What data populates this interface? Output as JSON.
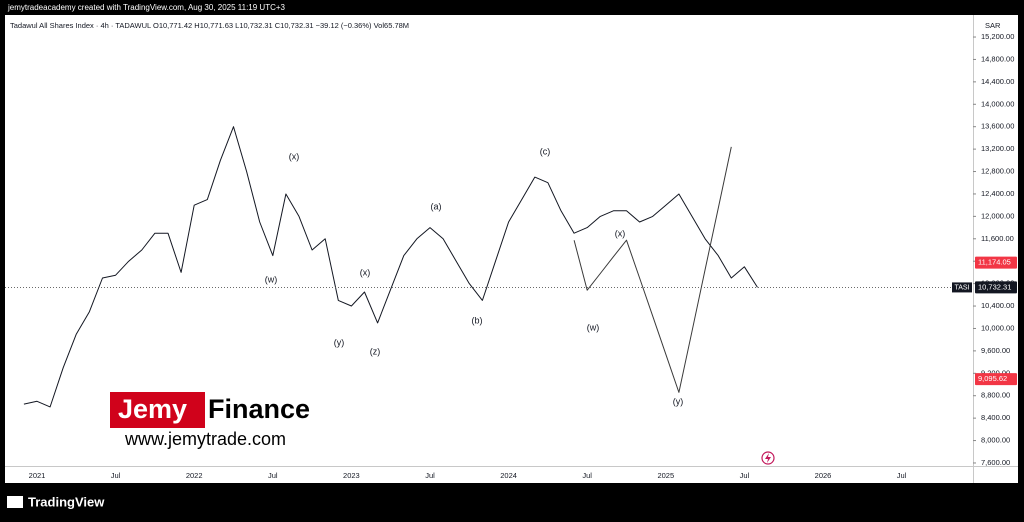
{
  "header": "jemytradeacademy created with TradingView.com, Aug 30, 2025 11:19 UTC+3",
  "footer": "TradingView",
  "brand": {
    "first": "Jemy",
    "second": "Finance",
    "url": "www.jemytrade.com"
  },
  "chart_data": {
    "type": "line",
    "title": "Tadawul All Shares Index · 4h · TADAWUL",
    "subtitle": "O10,771.42  H10,771.63  L10,732.31  C10,732.31  −39.12 (−0.36%)  Vol65.78M",
    "y_axis_label": "SAR",
    "categories": [
      null,
      "2021",
      null,
      null,
      null,
      null,
      null,
      "Jul",
      null,
      null,
      null,
      null,
      null,
      "2022",
      null,
      null,
      null,
      null,
      null,
      "Jul",
      null,
      null,
      null,
      null,
      null,
      "2023",
      null,
      null,
      null,
      null,
      null,
      "Jul",
      null,
      null,
      null,
      null,
      null,
      "2024",
      null,
      null,
      null,
      null,
      null,
      "Jul",
      null,
      null,
      null,
      null,
      null,
      "2025",
      null,
      null,
      null,
      null,
      null,
      "Jul",
      null,
      null,
      null,
      null,
      null,
      "2026",
      null,
      null,
      null,
      null,
      null,
      "Jul",
      null,
      null,
      null
    ],
    "values": [
      8650,
      8700,
      8600,
      9300,
      9900,
      10300,
      10900,
      10950,
      11200,
      11400,
      11700,
      11700,
      11000,
      12200,
      12300,
      13000,
      13600,
      12800,
      11900,
      11300,
      12400,
      12000,
      11400,
      11600,
      10500,
      10400,
      10650,
      10100,
      10700,
      11300,
      11600,
      11800,
      11600,
      11200,
      10800,
      10500,
      11200,
      11900,
      12300,
      12700,
      12600,
      12100,
      11700,
      11800,
      12000,
      12100,
      12100,
      11900,
      12000,
      12200,
      12400,
      12000,
      11600,
      11300,
      10900,
      11100,
      10732.31,
      null,
      null,
      null,
      null,
      null,
      null,
      null,
      null,
      null,
      null,
      null,
      null,
      null,
      null
    ],
    "color": "#131722",
    "projection": {
      "color": "#3a3a3a",
      "values": [
        null,
        null,
        null,
        null,
        null,
        null,
        null,
        null,
        null,
        null,
        null,
        null,
        null,
        null,
        null,
        null,
        null,
        null,
        null,
        null,
        null,
        null,
        null,
        null,
        null,
        null,
        null,
        null,
        null,
        null,
        null,
        null,
        null,
        null,
        null,
        null,
        null,
        null,
        null,
        null,
        null,
        null,
        11575,
        10682,
        10980,
        11280,
        11575,
        10900,
        10220,
        9540,
        8860,
        9950,
        11050,
        12140,
        13240,
        null,
        null,
        null,
        null,
        null,
        null,
        null,
        null,
        null,
        null,
        null,
        null,
        null,
        null,
        null,
        null,
        null
      ]
    },
    "annotations": [
      "(x)",
      "(w)",
      "(y)",
      "(x)",
      "(z)",
      "(a)",
      "(b)",
      "(c)",
      "(w)",
      "(x)",
      "(y)"
    ],
    "ylim": [
      7546,
      15593
    ],
    "yticks": [
      {
        "value": 7600,
        "label": "7,600.00"
      },
      {
        "value": 8000,
        "label": "8,000.00"
      },
      {
        "value": 8400,
        "label": "8,400.00"
      },
      {
        "value": 8800,
        "label": "8,800.00"
      },
      {
        "value": 9200,
        "label": "9,200.00"
      },
      {
        "value": 9600,
        "label": "9,600.00"
      },
      {
        "value": 10000,
        "label": "10,000.00"
      },
      {
        "value": 10400,
        "label": "10,400.00"
      },
      {
        "value": 10800,
        "label": "10,800.00"
      },
      {
        "value": 11200,
        "label": "11,200.00"
      },
      {
        "value": 11600,
        "label": "11,600.00"
      },
      {
        "value": 12000,
        "label": "12,000.00"
      },
      {
        "value": 12400,
        "label": "12,400.00"
      },
      {
        "value": 12800,
        "label": "12,800.00"
      },
      {
        "value": 13200,
        "label": "13,200.00"
      },
      {
        "value": 13600,
        "label": "13,600.00"
      },
      {
        "value": 14000,
        "label": "14,000.00"
      },
      {
        "value": 14400,
        "label": "14,400.00"
      },
      {
        "value": 14800,
        "label": "14,800.00"
      },
      {
        "value": 15200,
        "label": "15,200.00"
      }
    ],
    "price_tags": [
      {
        "value": 11174.05,
        "label": "11,174.05",
        "color": "#f23645"
      },
      {
        "value": 10732.31,
        "label": "10,732.31",
        "color": "#131722",
        "symbol": "TASI"
      },
      {
        "value": 9095.62,
        "label": "9,095.62",
        "color": "#f23645"
      }
    ]
  }
}
